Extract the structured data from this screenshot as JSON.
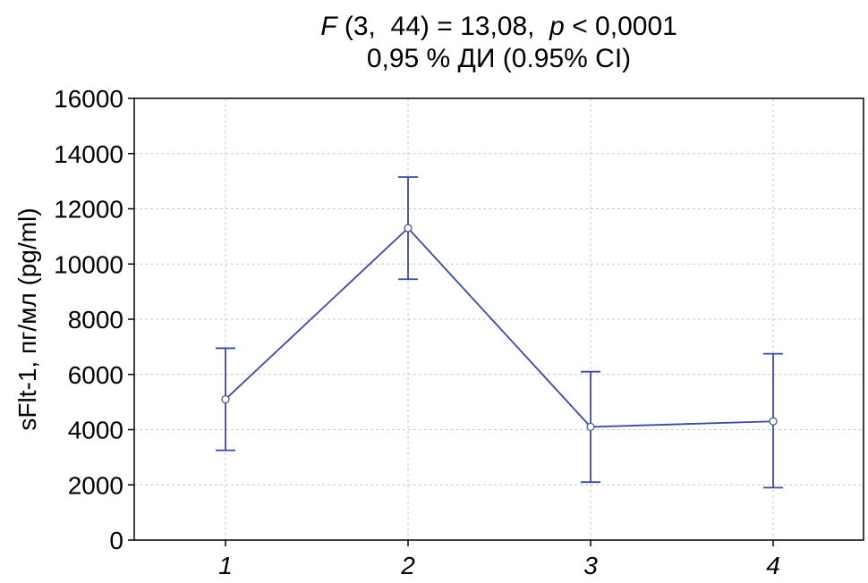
{
  "title": {
    "line1_stat_italic": "F",
    "line1_rest": " (3,  44) = 13,08,  ",
    "line1_p_italic": "p",
    "line1_p_rest": " < 0,0001",
    "line2": "0,95 % ДИ (0.95% CI)"
  },
  "chart_data": {
    "type": "line",
    "title": "F (3, 44) = 13,08, p < 0,0001 / 0,95 % ДИ (0.95% CI)",
    "xlabel": "",
    "ylabel": "sFlt-1, пг/мл (pg/ml)",
    "categories": [
      "1",
      "2",
      "3",
      "4"
    ],
    "series": [
      {
        "values": [
          5100,
          11300,
          4100,
          4300
        ],
        "ci_low": [
          3250,
          9450,
          2100,
          1900
        ],
        "ci_high": [
          6950,
          13150,
          6100,
          6750
        ],
        "color": "#3c4a9c"
      }
    ],
    "ylim": [
      0,
      16000
    ],
    "yticks": [
      0,
      2000,
      4000,
      6000,
      8000,
      10000,
      12000,
      14000,
      16000
    ],
    "ytick_labels": [
      "0",
      "2000",
      "4000",
      "6000",
      "8000",
      "10000",
      "12000",
      "14000",
      "16000"
    ],
    "grid": true
  },
  "colors": {
    "line": "#3c4a9c",
    "grid": "#c8c8c8",
    "axis": "#000000"
  }
}
